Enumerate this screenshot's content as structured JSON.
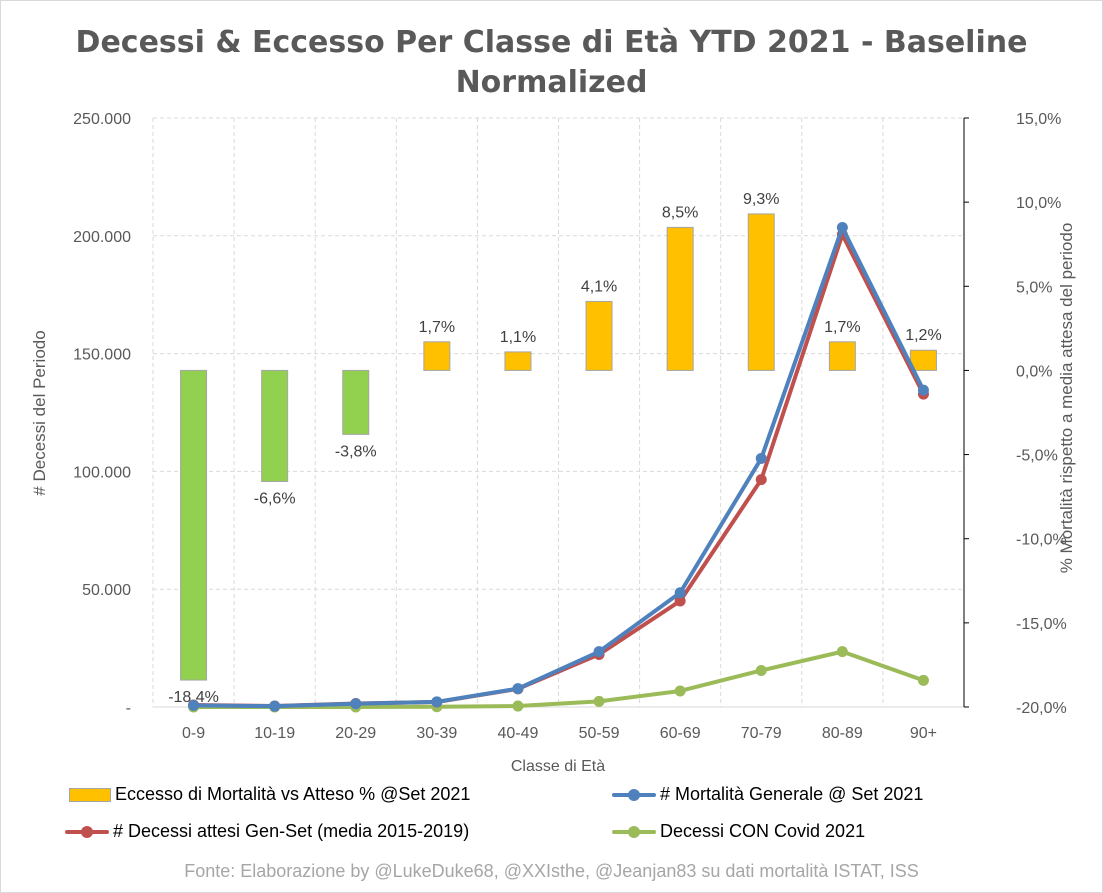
{
  "chart_data": {
    "type": "bar",
    "title_line1": "Decessi & Eccesso Per Classe di Età YTD 2021 - Baseline",
    "title_line2": "Normalized",
    "xlabel": "Classe di Età",
    "ylabel_left": "# Decessi del Periodo",
    "ylabel_right": "% Mortalità rispetto a media attesa del periodo",
    "categories": [
      "0-9",
      "10-19",
      "20-29",
      "30-39",
      "40-49",
      "50-59",
      "60-69",
      "70-79",
      "80-89",
      "90+"
    ],
    "left_axis": {
      "ylim": [
        0,
        250000
      ],
      "ticks": [
        0,
        50000,
        100000,
        150000,
        200000,
        250000
      ],
      "tick_labels": [
        "-",
        "50.000",
        "100.000",
        "150.000",
        "200.000",
        "250.000"
      ]
    },
    "right_axis": {
      "ylim": [
        -20,
        15
      ],
      "ticks": [
        -20,
        -15,
        -10,
        -5,
        0,
        5,
        10,
        15
      ],
      "tick_labels": [
        "-20,0%",
        "-15,0%",
        "-10,0%",
        "-5,0%",
        "0,0%",
        "5,0%",
        "10,0%",
        "15,0%"
      ]
    },
    "grid": "horizontal dashed",
    "legend_position": "bottom",
    "series": [
      {
        "name": "Eccesso di Mortalità vs Atteso % @Set 2021",
        "kind": "bar",
        "axis": "right",
        "color_positive": "#ffc000",
        "color_negative": "#92d050",
        "values": [
          -18.4,
          -6.6,
          -3.8,
          1.7,
          1.1,
          4.1,
          8.5,
          9.3,
          1.7,
          1.2
        ],
        "labels": [
          "-18,4%",
          "-6,6%",
          "-3,8%",
          "1,7%",
          "1,1%",
          "4,1%",
          "8,5%",
          "9,3%",
          "1,7%",
          "1,2%"
        ]
      },
      {
        "name": "# Mortalità Generale @ Set 2021",
        "kind": "line",
        "axis": "left",
        "color": "#4f81bd",
        "values": [
          700,
          350,
          1400,
          2200,
          7800,
          23500,
          48500,
          105500,
          203500,
          134500
        ]
      },
      {
        "name": "# Decessi attesi Gen-Set (media 2015-2019)",
        "kind": "line",
        "axis": "left",
        "color": "#c0504d",
        "values": [
          850,
          400,
          1500,
          2100,
          7700,
          22300,
          45000,
          96500,
          200500,
          132800
        ]
      },
      {
        "name": "Decessi CON Covid 2021",
        "kind": "line",
        "axis": "left",
        "color": "#9bbb59",
        "values": [
          0,
          0,
          0,
          100,
          400,
          2400,
          6800,
          15500,
          23500,
          11300
        ]
      }
    ]
  },
  "source": "Fonte: Elaborazione by @LukeDuke68, @XXIsthe, @Jeanjan83  su dati mortalità ISTAT, ISS"
}
